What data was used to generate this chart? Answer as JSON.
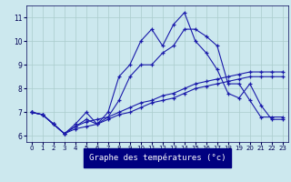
{
  "xlabel": "Graphe des températures (°c)",
  "background_color": "#cce8ee",
  "grid_color": "#aacccc",
  "line_color": "#1a1aaa",
  "xlim": [
    -0.5,
    23.5
  ],
  "ylim": [
    5.75,
    11.5
  ],
  "yticks": [
    6,
    7,
    8,
    9,
    10,
    11
  ],
  "xticks": [
    0,
    1,
    2,
    3,
    4,
    5,
    6,
    7,
    8,
    9,
    10,
    11,
    12,
    13,
    14,
    15,
    16,
    17,
    18,
    19,
    20,
    21,
    22,
    23
  ],
  "line1": [
    7.0,
    6.9,
    6.5,
    6.1,
    6.3,
    6.4,
    6.5,
    6.7,
    6.9,
    7.0,
    7.2,
    7.4,
    7.5,
    7.6,
    7.8,
    8.0,
    8.1,
    8.2,
    8.3,
    8.4,
    8.5,
    8.5,
    8.5,
    8.5
  ],
  "line2": [
    7.0,
    6.9,
    6.5,
    6.1,
    6.4,
    6.6,
    6.7,
    6.8,
    7.0,
    7.2,
    7.4,
    7.5,
    7.7,
    7.8,
    8.0,
    8.2,
    8.3,
    8.4,
    8.5,
    8.6,
    8.7,
    8.7,
    8.7,
    8.7
  ],
  "line3": [
    7.0,
    6.9,
    6.5,
    6.1,
    6.5,
    7.0,
    6.5,
    6.8,
    7.5,
    8.5,
    9.0,
    9.0,
    9.5,
    9.8,
    10.5,
    10.5,
    10.2,
    9.8,
    8.2,
    8.2,
    7.5,
    6.8,
    6.8,
    6.8
  ],
  "line4": [
    7.0,
    6.9,
    6.5,
    6.1,
    6.4,
    6.7,
    6.5,
    7.0,
    8.5,
    9.0,
    10.0,
    10.5,
    9.8,
    10.7,
    11.2,
    10.0,
    9.5,
    8.8,
    7.8,
    7.6,
    8.2,
    7.3,
    6.7,
    6.7
  ]
}
